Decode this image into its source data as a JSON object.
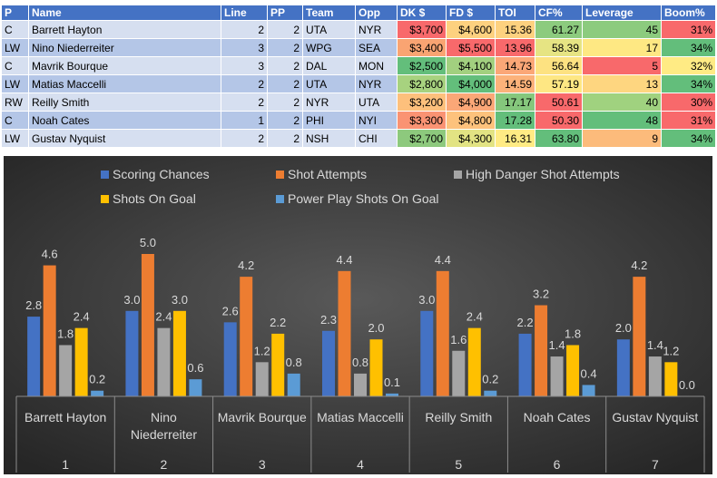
{
  "table": {
    "headers": [
      "P",
      "Name",
      "Line",
      "PP",
      "Team",
      "Opp",
      "DK $",
      "FD $",
      "TOI",
      "CF%",
      "Leverage",
      "Boom%"
    ],
    "rows": [
      {
        "pos": "C",
        "name": "Barrett Hayton",
        "line": "2",
        "pp": "2",
        "team": "UTA",
        "opp": "NYR",
        "dk": "$3,700",
        "fd": "$4,600",
        "toi": "15.36",
        "cf": "61.27",
        "lev": "45",
        "boom": "31%"
      },
      {
        "pos": "LW",
        "name": "Nino Niederreiter",
        "line": "3",
        "pp": "2",
        "team": "WPG",
        "opp": "SEA",
        "dk": "$3,400",
        "fd": "$5,500",
        "toi": "13.96",
        "cf": "58.39",
        "lev": "17",
        "boom": "34%"
      },
      {
        "pos": "C",
        "name": "Mavrik Bourque",
        "line": "3",
        "pp": "2",
        "team": "DAL",
        "opp": "MON",
        "dk": "$2,500",
        "fd": "$4,100",
        "toi": "14.73",
        "cf": "56.64",
        "lev": "5",
        "boom": "32%"
      },
      {
        "pos": "LW",
        "name": "Matias Maccelli",
        "line": "2",
        "pp": "2",
        "team": "UTA",
        "opp": "NYR",
        "dk": "$2,800",
        "fd": "$4,000",
        "toi": "14.59",
        "cf": "57.19",
        "lev": "13",
        "boom": "34%"
      },
      {
        "pos": "RW",
        "name": "Reilly Smith",
        "line": "2",
        "pp": "2",
        "team": "NYR",
        "opp": "UTA",
        "dk": "$3,200",
        "fd": "$4,900",
        "toi": "17.17",
        "cf": "50.61",
        "lev": "40",
        "boom": "30%"
      },
      {
        "pos": "C",
        "name": "Noah Cates",
        "line": "1",
        "pp": "2",
        "team": "PHI",
        "opp": "NYI",
        "dk": "$3,300",
        "fd": "$4,800",
        "toi": "17.28",
        "cf": "50.30",
        "lev": "48",
        "boom": "31%"
      },
      {
        "pos": "LW",
        "name": "Gustav Nyquist",
        "line": "2",
        "pp": "2",
        "team": "NSH",
        "opp": "CHI",
        "dk": "$2,700",
        "fd": "$4,300",
        "toi": "16.31",
        "cf": "63.80",
        "lev": "9",
        "boom": "34%"
      }
    ],
    "cell_colors": {
      "dk": [
        "#f8696b",
        "#f9a472",
        "#63be7b",
        "#a7d27f",
        "#fdc07c",
        "#fa9373",
        "#8dc97d"
      ],
      "fd": [
        "#fdd17f",
        "#f8696b",
        "#a2d07f",
        "#63be7b",
        "#fba777",
        "#fdc27c",
        "#e2e383"
      ],
      "toi": [
        "#fdd17f",
        "#f8696b",
        "#fba777",
        "#fcb27a",
        "#85c77c",
        "#63be7b",
        "#ffeb84"
      ],
      "cf": [
        "#8ccb7e",
        "#e6e483",
        "#fde281",
        "#fee783",
        "#f8696b",
        "#f8696b",
        "#63be7b"
      ],
      "lev": [
        "#8ccb7e",
        "#fee883",
        "#f8696b",
        "#fed680",
        "#a0d27f",
        "#63be7b",
        "#fcbb7b"
      ],
      "boom": [
        "#f8696b",
        "#63be7b",
        "#ffeb84",
        "#63be7b",
        "#f8696b",
        "#f8696b",
        "#63be7b"
      ]
    }
  },
  "chart_data": {
    "type": "bar",
    "title": "",
    "xlabel": "",
    "ylabel": "",
    "ylim": [
      0,
      6
    ],
    "grid": false,
    "legend_position": "top",
    "categories": [
      "Barrett Hayton",
      "Nino Niederreiter",
      "Mavrik Bourque",
      "Matias Maccelli",
      "Reilly Smith",
      "Noah Cates",
      "Gustav Nyquist"
    ],
    "category_numbers": [
      "1",
      "2",
      "3",
      "4",
      "5",
      "6",
      "7"
    ],
    "series": [
      {
        "name": "Scoring Chances",
        "color": "#4472c4",
        "values": [
          2.8,
          3.0,
          2.6,
          2.3,
          3.0,
          2.2,
          2.0
        ],
        "labels": [
          "2.8",
          "3.0",
          "2.6",
          "2.3",
          "3.0",
          "2.2",
          "2.0"
        ]
      },
      {
        "name": "Shot Attempts",
        "color": "#ed7d31",
        "values": [
          4.6,
          5.0,
          4.2,
          4.4,
          4.4,
          3.2,
          4.2
        ],
        "labels": [
          "4.6",
          "5.0",
          "4.2",
          "4.4",
          "4.4",
          "3.2",
          "4.2"
        ]
      },
      {
        "name": "High Danger Shot Attempts",
        "color": "#a5a5a5",
        "values": [
          1.8,
          2.4,
          1.2,
          0.8,
          1.6,
          1.4,
          1.4
        ],
        "labels": [
          "1.8",
          "2.4",
          "1.2",
          "0.8",
          "1.6",
          "1.4",
          "1.4"
        ]
      },
      {
        "name": "Shots On Goal",
        "color": "#ffc000",
        "values": [
          2.4,
          3.0,
          2.2,
          2.0,
          2.4,
          1.8,
          1.2
        ],
        "labels": [
          "2.4",
          "3.0",
          "2.2",
          "2.0",
          "2.4",
          "1.8",
          "1.2"
        ]
      },
      {
        "name": "Power Play Shots On Goal",
        "color": "#5b9bd5",
        "values": [
          0.2,
          0.6,
          0.8,
          0.1,
          0.2,
          0.4,
          0.0
        ],
        "labels": [
          "0.2",
          "0.6",
          "0.8",
          "0.1",
          "0.2",
          "0.4",
          "0.0"
        ]
      }
    ]
  }
}
